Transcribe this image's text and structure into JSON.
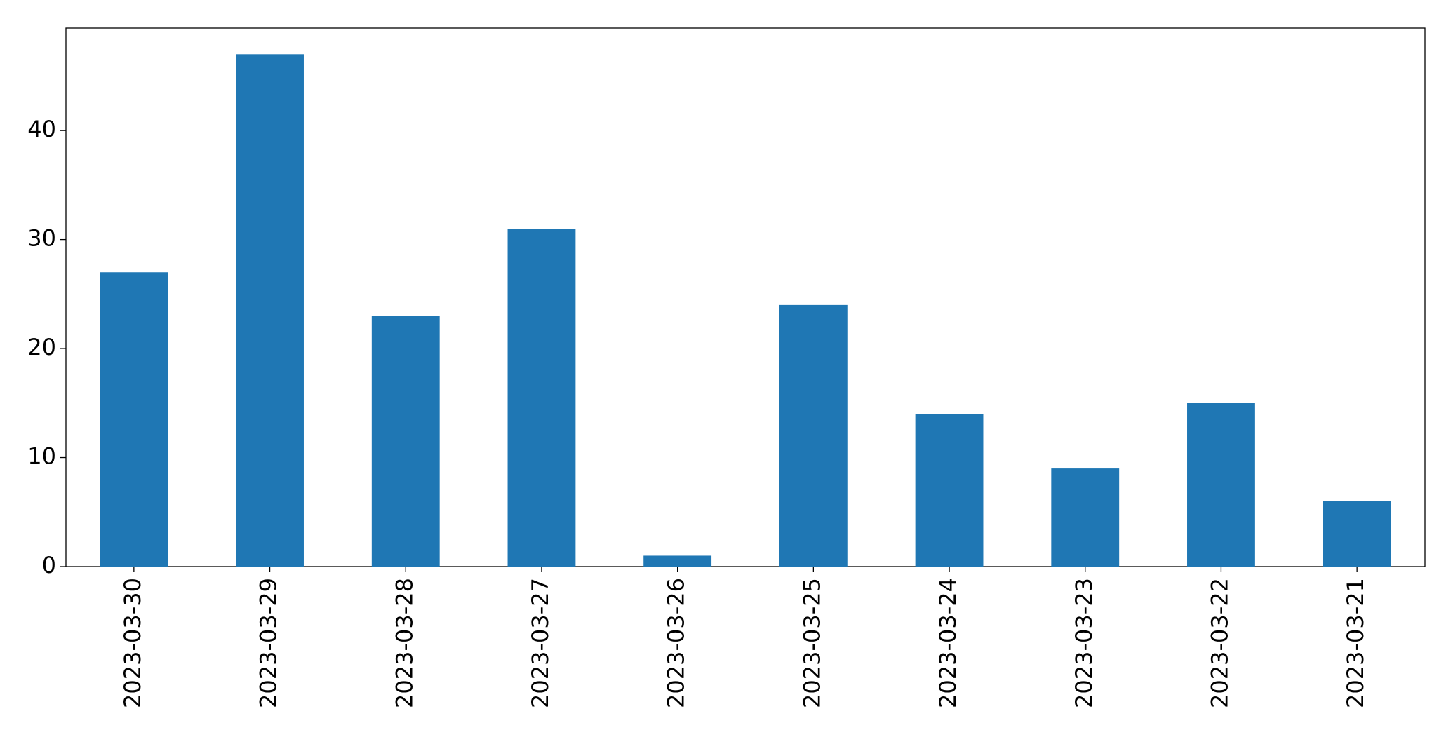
{
  "chart_data": {
    "type": "bar",
    "categories": [
      "2023-03-30",
      "2023-03-29",
      "2023-03-28",
      "2023-03-27",
      "2023-03-26",
      "2023-03-25",
      "2023-03-24",
      "2023-03-23",
      "2023-03-22",
      "2023-03-21"
    ],
    "values": [
      27,
      47,
      23,
      31,
      1,
      24,
      14,
      9,
      15,
      6
    ],
    "color": "#1f77b4",
    "ylim": [
      0,
      49.4
    ],
    "yticks": [
      0,
      10,
      20,
      30,
      40
    ],
    "grid": false
  }
}
